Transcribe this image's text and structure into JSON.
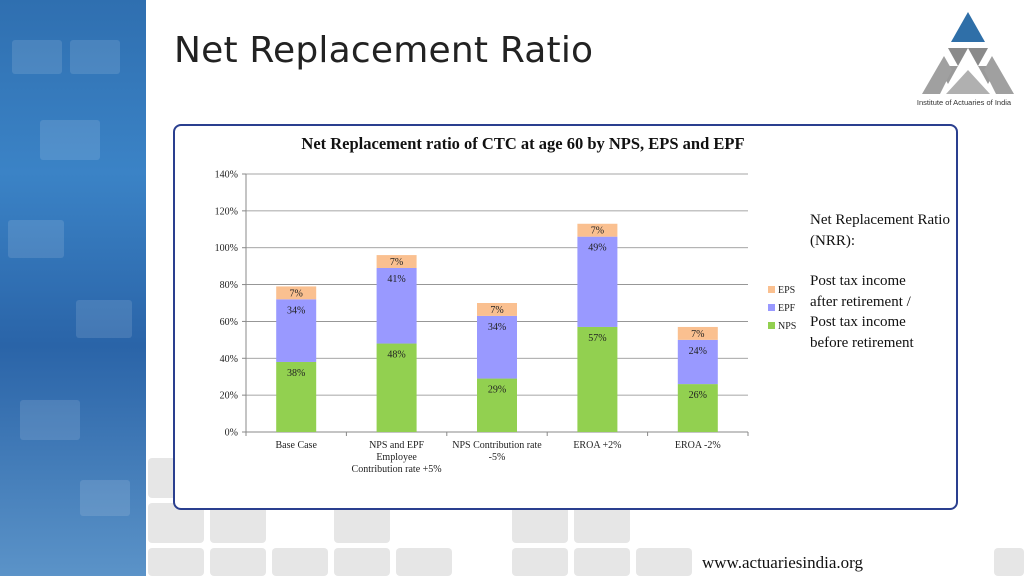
{
  "slide": {
    "title": "Net Replacement Ratio",
    "logo_text": "Institute of Actuaries of India",
    "footer_url": "www.actuariesindia.org"
  },
  "note": {
    "heading": "Net Replacement Ratio (NRR):",
    "line1": "Post tax income",
    "line2": "after retirement /",
    "line3": "Post tax income",
    "line4": "before retirement"
  },
  "colors": {
    "nps": "#92d050",
    "epf": "#9999ff",
    "eps": "#fac090",
    "frame": "#2a3f8f",
    "band": "#3b83c6"
  },
  "chart_data": {
    "type": "bar",
    "stacked": true,
    "title": "Net Replacement ratio of CTC at age 60 by NPS, EPS and EPF",
    "xlabel": "",
    "ylabel": "",
    "ylim": [
      0,
      140
    ],
    "yticks": [
      "0%",
      "20%",
      "40%",
      "60%",
      "80%",
      "100%",
      "120%",
      "140%"
    ],
    "grid": true,
    "legend_position": "right",
    "categories": [
      [
        "Base Case"
      ],
      [
        "NPS and EPF",
        "Employee",
        "Contribution rate +5%"
      ],
      [
        "NPS Contribution rate",
        "-5%"
      ],
      [
        "EROA +2%"
      ],
      [
        "EROA -2%"
      ]
    ],
    "series": [
      {
        "name": "NPS",
        "values": [
          38,
          48,
          29,
          57,
          26
        ],
        "labels": [
          "38%",
          "48%",
          "29%",
          "57%",
          "26%"
        ]
      },
      {
        "name": "EPF",
        "values": [
          34,
          41,
          34,
          49,
          24
        ],
        "labels": [
          "34%",
          "41%",
          "34%",
          "49%",
          "24%"
        ]
      },
      {
        "name": "EPS",
        "values": [
          7,
          7,
          7,
          7,
          7
        ],
        "labels": [
          "7%",
          "7%",
          "7%",
          "7%",
          "7%"
        ]
      }
    ],
    "legend": [
      "EPS",
      "EPF",
      "NPS"
    ]
  }
}
